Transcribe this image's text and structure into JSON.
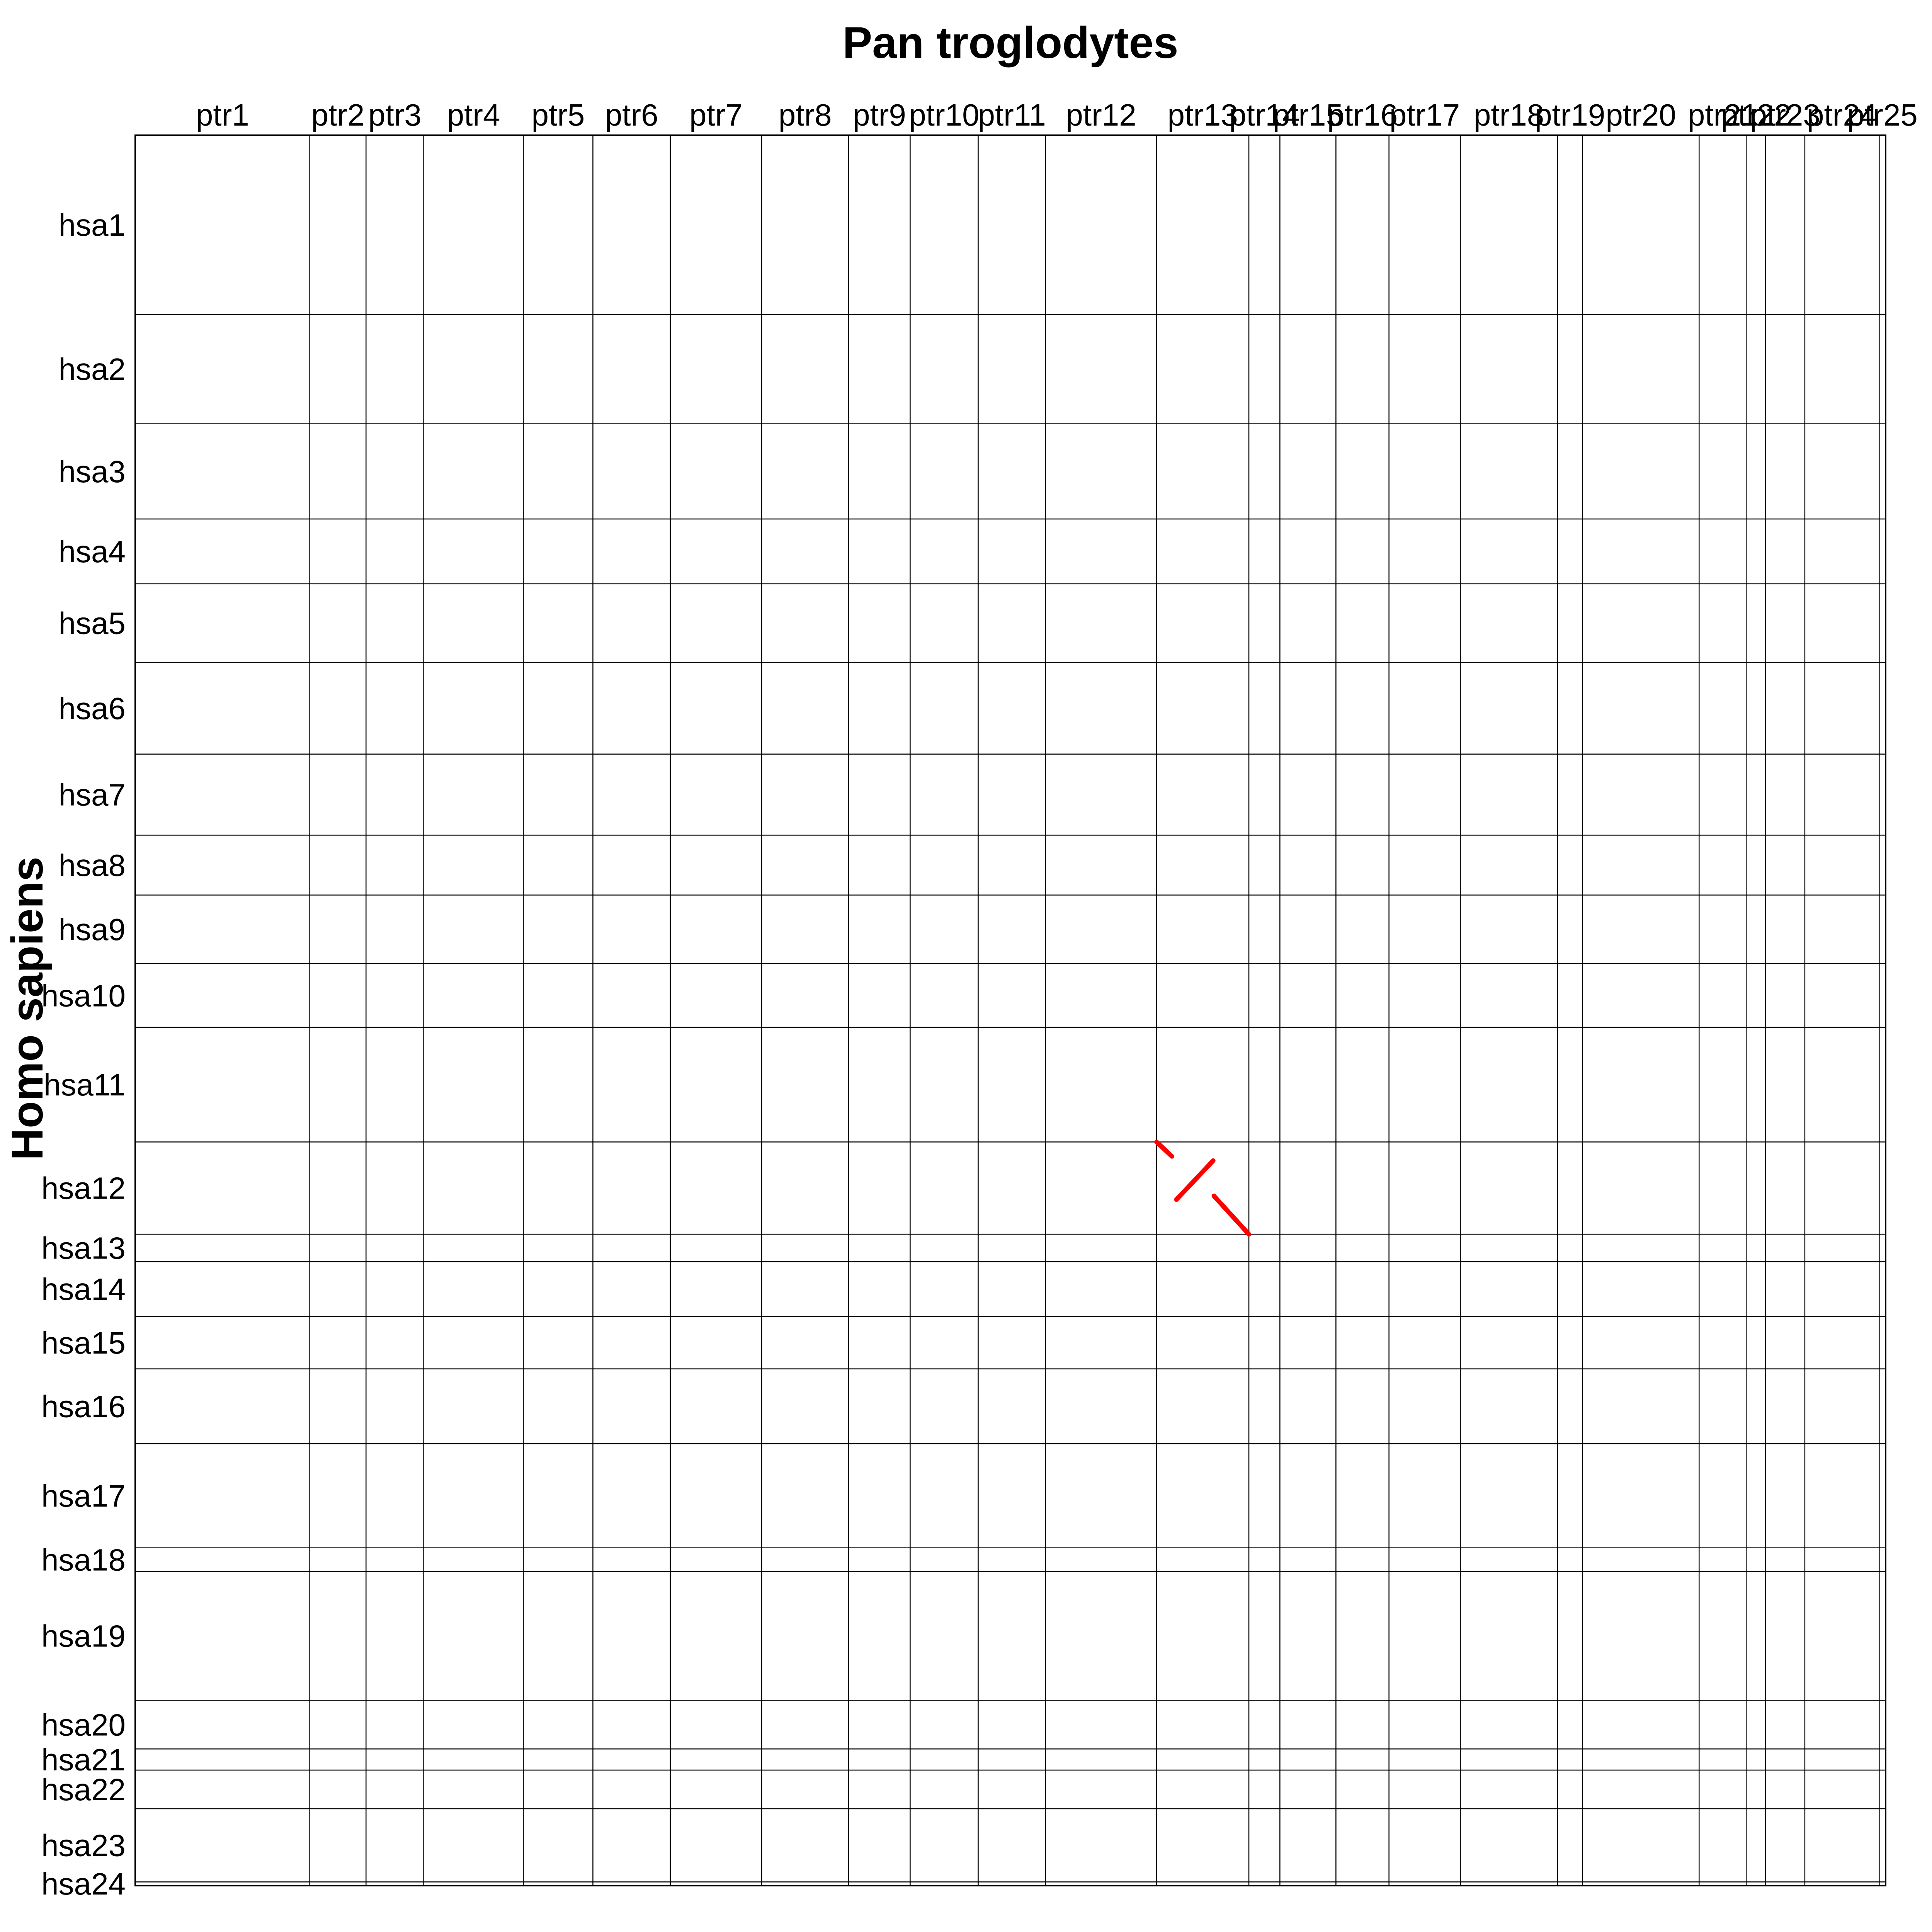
{
  "chart_data": {
    "type": "dotplot",
    "title": "Pan troglodytes",
    "ylabel": "Homo sapiens",
    "grid": true,
    "x_chromosomes": [
      {
        "name": "ptr1",
        "length": 228.3
      },
      {
        "name": "ptr2",
        "length": 73.6
      },
      {
        "name": "ptr3",
        "length": 75.5
      },
      {
        "name": "ptr4",
        "length": 130.3
      },
      {
        "name": "ptr5",
        "length": 91.0
      },
      {
        "name": "ptr6",
        "length": 101.3
      },
      {
        "name": "ptr7",
        "length": 119.4
      },
      {
        "name": "ptr8",
        "length": 113.9
      },
      {
        "name": "ptr9",
        "length": 80.4
      },
      {
        "name": "ptr10",
        "length": 89.0
      },
      {
        "name": "ptr11",
        "length": 88.1
      },
      {
        "name": "ptr12",
        "length": 145.3
      },
      {
        "name": "ptr13",
        "length": 120.7
      },
      {
        "name": "ptr14",
        "length": 40.6
      },
      {
        "name": "ptr15",
        "length": 73.3
      },
      {
        "name": "ptr16",
        "length": 69.4
      },
      {
        "name": "ptr17",
        "length": 93.4
      },
      {
        "name": "ptr18",
        "length": 127.0
      },
      {
        "name": "ptr19",
        "length": 32.9
      },
      {
        "name": "ptr20",
        "length": 152.4
      },
      {
        "name": "ptr21",
        "length": 62.4
      },
      {
        "name": "ptr22",
        "length": 24.2
      },
      {
        "name": "ptr23",
        "length": 51.7
      },
      {
        "name": "ptr24",
        "length": 97.3
      },
      {
        "name": "ptr25",
        "length": 8.4
      }
    ],
    "y_chromosomes": [
      {
        "name": "hsa1",
        "length": 248.9
      },
      {
        "name": "hsa2",
        "length": 152.0
      },
      {
        "name": "hsa3",
        "length": 132.2
      },
      {
        "name": "hsa4",
        "length": 90.1
      },
      {
        "name": "hsa5",
        "length": 109.1
      },
      {
        "name": "hsa6",
        "length": 127.5
      },
      {
        "name": "hsa7",
        "length": 112.6
      },
      {
        "name": "hsa8",
        "length": 83.2
      },
      {
        "name": "hsa9",
        "length": 95.3
      },
      {
        "name": "hsa10",
        "length": 88.4
      },
      {
        "name": "hsa11",
        "length": 159.3
      },
      {
        "name": "hsa12",
        "length": 128.2
      },
      {
        "name": "hsa13",
        "length": 38.1
      },
      {
        "name": "hsa14",
        "length": 76.2
      },
      {
        "name": "hsa15",
        "length": 72.8
      },
      {
        "name": "hsa16",
        "length": 103.9
      },
      {
        "name": "hsa17",
        "length": 144.7
      },
      {
        "name": "hsa18",
        "length": 32.9
      },
      {
        "name": "hsa19",
        "length": 178.9
      },
      {
        "name": "hsa20",
        "length": 67.6
      },
      {
        "name": "hsa21",
        "length": 29.4
      },
      {
        "name": "hsa22",
        "length": 53.7
      },
      {
        "name": "hsa23",
        "length": 101.6
      },
      {
        "name": "hsa24",
        "length": 5.2
      }
    ],
    "segments": [
      {
        "x_chrom": "ptr13",
        "x_start": 0.0,
        "x_end": 20.0,
        "y_chrom": "hsa12",
        "y_start": 0.0,
        "y_end": 20.0
      },
      {
        "x_chrom": "ptr13",
        "x_start": 26.0,
        "x_end": 74.0,
        "y_chrom": "hsa12",
        "y_start": 80.0,
        "y_end": 26.0
      },
      {
        "x_chrom": "ptr13",
        "x_start": 75.0,
        "x_end": 120.7,
        "y_chrom": "hsa12",
        "y_start": 75.0,
        "y_end": 128.2
      }
    ]
  }
}
